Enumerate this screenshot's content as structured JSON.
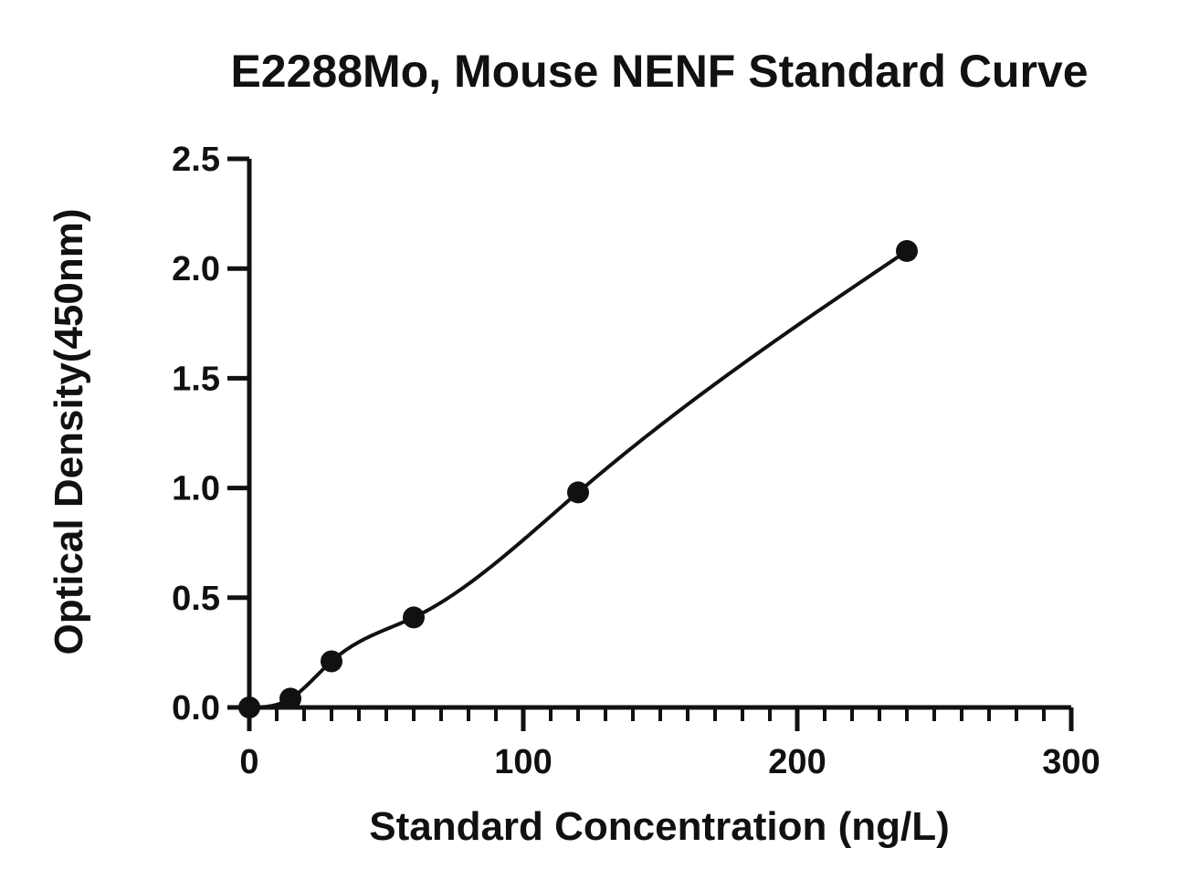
{
  "chart_data": {
    "type": "scatter",
    "title": "E2288Mo, Mouse NENF Standard Curve",
    "xlabel": "Standard Concentration (ng/L)",
    "ylabel": "Optical Density(450nm)",
    "xlim": [
      0,
      300
    ],
    "ylim": [
      0,
      2.5
    ],
    "x_ticks": [
      "0",
      "100",
      "200",
      "300"
    ],
    "y_ticks": [
      "0.0",
      "0.5",
      "1.0",
      "1.5",
      "2.0",
      "2.5"
    ],
    "x_minor_step": 10,
    "grid": false,
    "legend": "none",
    "series": [
      {
        "x": [
          0,
          15,
          30,
          60,
          120,
          240
        ],
        "y": [
          0.0,
          0.04,
          0.21,
          0.41,
          0.98,
          2.08
        ]
      }
    ],
    "fit_curve": true,
    "colors": {
      "marker": "#111111",
      "line": "#111111",
      "axis": "#111111"
    }
  }
}
